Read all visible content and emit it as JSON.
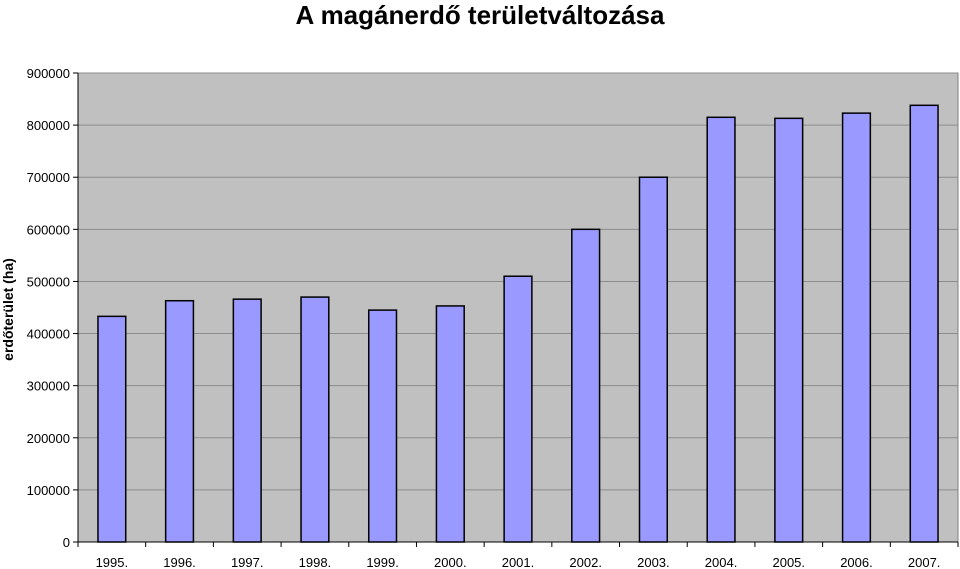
{
  "chart_data": {
    "type": "bar",
    "title": "A magánerdő területváltozása",
    "xlabel": "",
    "ylabel": "erdőterület (ha)",
    "categories": [
      "1995.",
      "1996.",
      "1997.",
      "1998.",
      "1999.",
      "2000.",
      "2001.",
      "2002.",
      "2003.",
      "2004.",
      "2005.",
      "2006.",
      "2007."
    ],
    "values": [
      433000,
      463000,
      466000,
      470000,
      445000,
      453000,
      510000,
      600000,
      700000,
      815000,
      813000,
      823000,
      838000
    ],
    "ylim": [
      0,
      900000
    ],
    "yticks": [
      "0",
      "100000",
      "200000",
      "300000",
      "400000",
      "500000",
      "600000",
      "700000",
      "800000",
      "900000"
    ],
    "grid": true,
    "legend": "none",
    "colors": {
      "bar_fill": "#9999ff",
      "bar_stroke": "#000000",
      "plot_background": "#c0c0c0",
      "gridline": "#8c8c8c"
    }
  }
}
